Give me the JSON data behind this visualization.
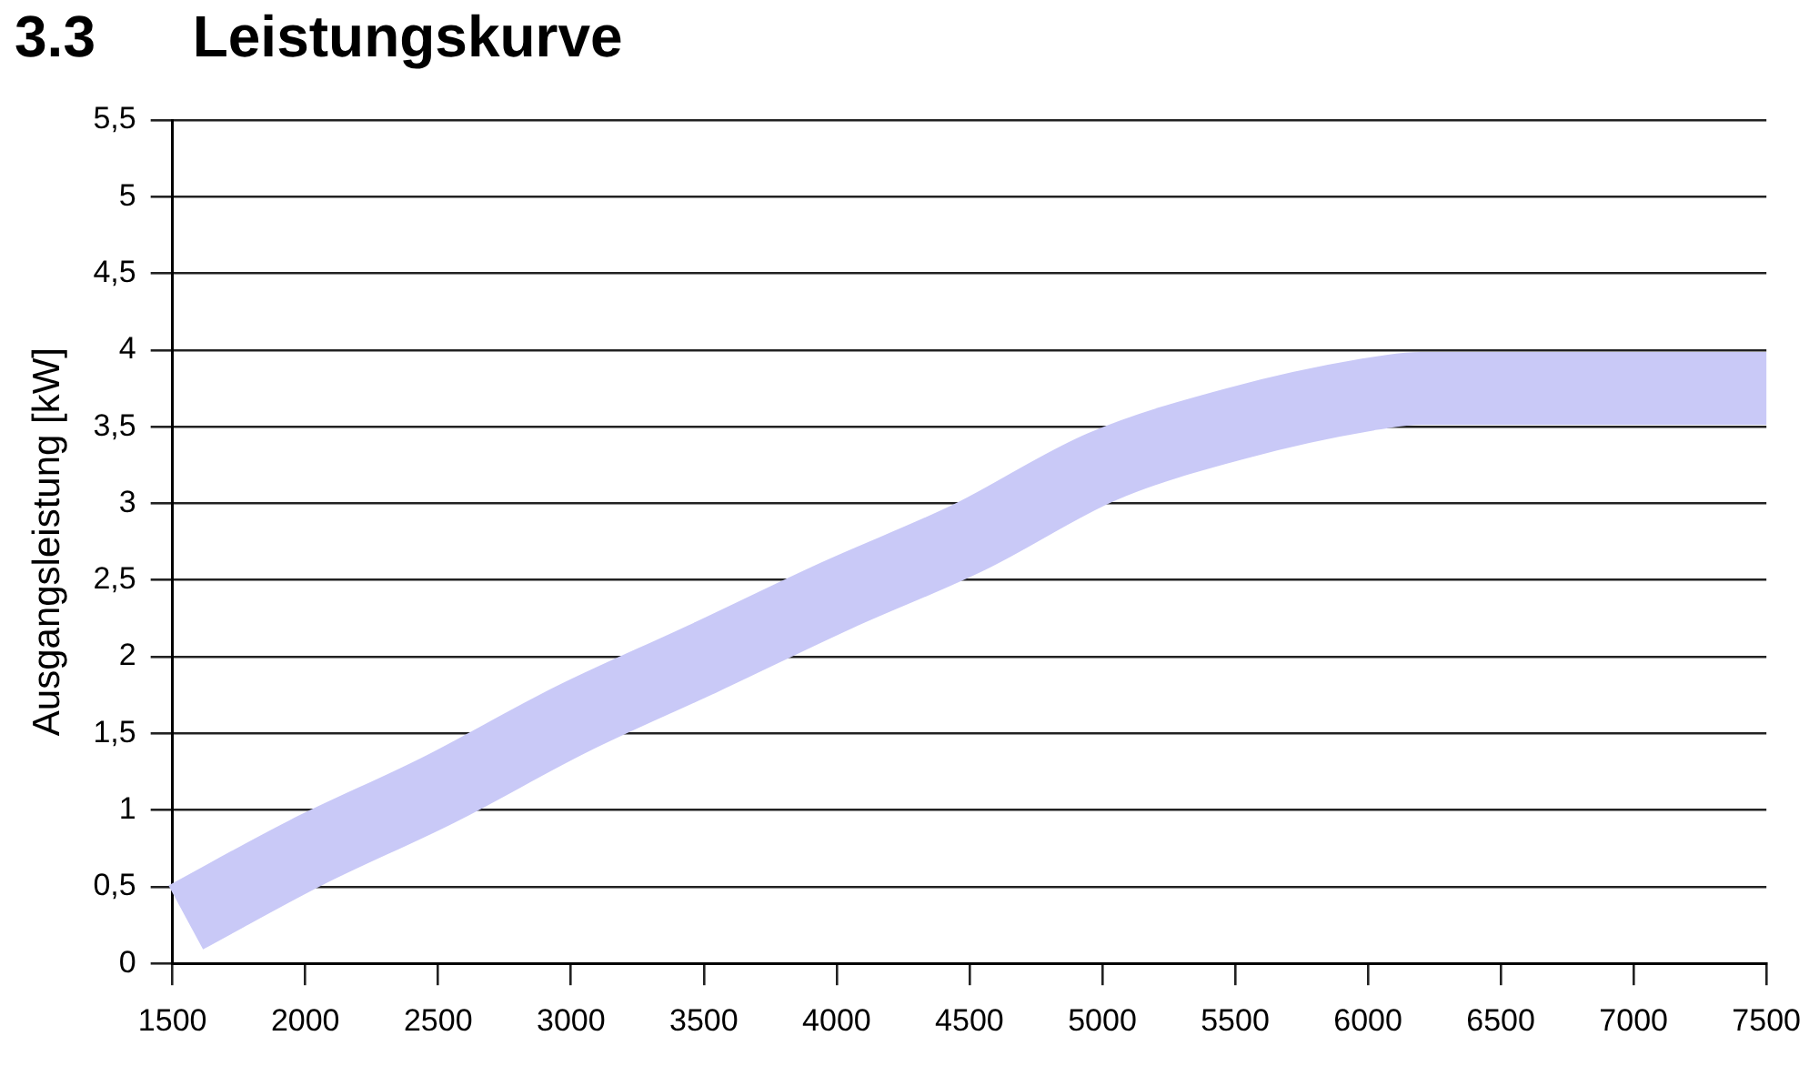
{
  "chart_data": {
    "type": "line",
    "title": "3.3      Leistungskurve",
    "ylabel": "Ausgangsleistung [kW]",
    "x": [
      1550,
      2000,
      2500,
      3000,
      3500,
      4000,
      4500,
      5000,
      5500,
      6000,
      6200,
      7500
    ],
    "series": [
      {
        "color": "#c9c9f7",
        "values": [
          0.3,
          0.72,
          1.13,
          1.59,
          1.99,
          2.4,
          2.78,
          3.24,
          3.52,
          3.71,
          3.75,
          3.75
        ]
      }
    ],
    "xlim": [
      1500,
      7500
    ],
    "xticks": [
      1500,
      2000,
      2500,
      3000,
      3500,
      4000,
      4500,
      5000,
      5500,
      6000,
      6500,
      7000,
      7500
    ],
    "ylim": [
      0,
      5.5
    ],
    "yticks": [
      0,
      {
        "value": 0.5,
        "label": "0,5"
      },
      1,
      {
        "value": 1.5,
        "label": "1,5"
      },
      2,
      {
        "value": 2.5,
        "label": "2,5"
      },
      3,
      {
        "value": 3.5,
        "label": "3,5"
      },
      4,
      {
        "value": 4.5,
        "label": "4,5"
      },
      5,
      {
        "value": 5.5,
        "label": "5,5"
      }
    ],
    "grid": "y",
    "legend": false,
    "marker": "none",
    "line_style": "solid"
  }
}
